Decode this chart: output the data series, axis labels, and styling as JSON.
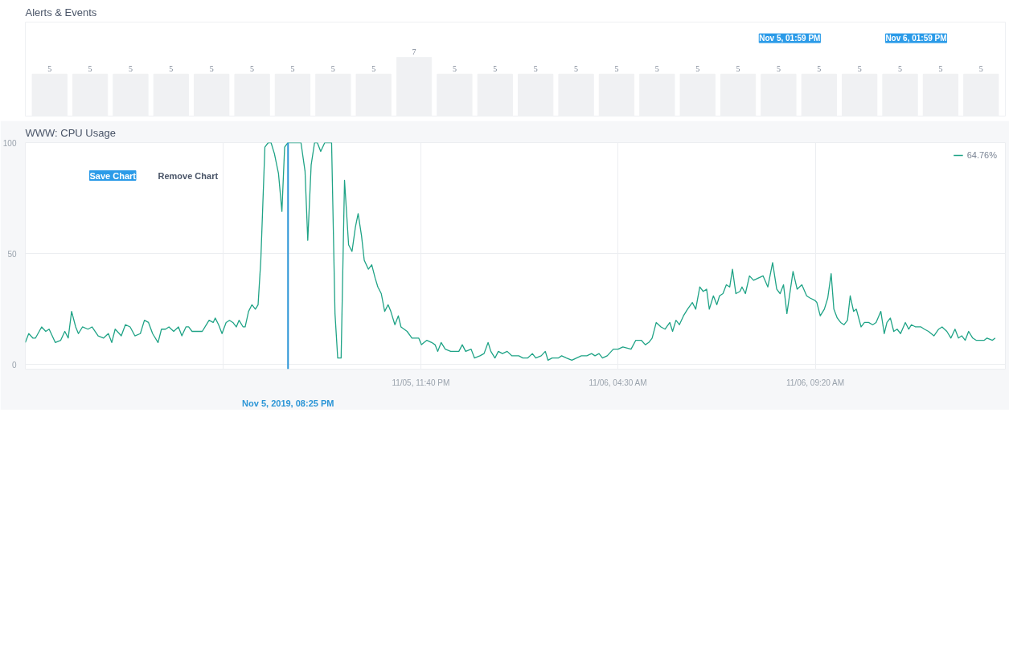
{
  "chart_data": [
    {
      "type": "bar",
      "title": "Alerts & Events",
      "categories": [
        null,
        null,
        null,
        null,
        null,
        null,
        null,
        null,
        null,
        null,
        null,
        null,
        null,
        null,
        null,
        null,
        null,
        null,
        null,
        null,
        null,
        null,
        null,
        null
      ],
      "values": [
        5,
        5,
        5,
        5,
        5,
        5,
        5,
        5,
        5,
        7,
        5,
        5,
        5,
        5,
        5,
        5,
        5,
        5,
        5,
        5,
        5,
        5,
        5,
        5
      ],
      "data_labels": true,
      "color": "#f0f1f3",
      "annotations": [
        "Nov 5, 01:59 PM",
        "Nov 6, 01:59 PM"
      ]
    },
    {
      "type": "line",
      "title": "WWW: CPU Usage",
      "x": [
        "2019-11-05T13:59",
        "2019-11-05T14:04",
        "2019-11-05T14:10",
        "2019-11-05T14:14",
        "2019-11-05T14:23",
        "2019-11-05T14:29",
        "2019-11-05T14:34",
        "2019-11-05T14:43",
        "2019-11-05T14:51",
        "2019-11-05T14:57",
        "2019-11-05T15:02",
        "2019-11-05T15:07",
        "2019-11-05T15:13",
        "2019-11-05T15:17",
        "2019-11-05T15:23",
        "2019-11-05T15:31",
        "2019-11-05T15:37",
        "2019-11-05T15:46",
        "2019-11-05T15:54",
        "2019-11-05T16:01",
        "2019-11-05T16:06",
        "2019-11-05T16:11",
        "2019-11-05T16:20",
        "2019-11-05T16:26",
        "2019-11-05T16:33",
        "2019-11-05T16:40",
        "2019-11-05T16:48",
        "2019-11-05T16:54",
        "2019-11-05T17:00",
        "2019-11-05T17:06",
        "2019-11-05T17:14",
        "2019-11-05T17:19",
        "2019-11-05T17:25",
        "2019-11-05T17:30",
        "2019-11-05T17:37",
        "2019-11-05T17:44",
        "2019-11-05T17:49",
        "2019-11-05T17:55",
        "2019-11-05T17:59",
        "2019-11-05T18:04",
        "2019-11-05T18:13",
        "2019-11-05T18:19",
        "2019-11-05T18:29",
        "2019-11-05T18:35",
        "2019-11-05T18:38",
        "2019-11-05T18:43",
        "2019-11-05T18:48",
        "2019-11-05T18:54",
        "2019-11-05T18:59",
        "2019-11-05T19:04",
        "2019-11-05T19:09",
        "2019-11-05T19:13",
        "2019-11-05T19:19",
        "2019-11-05T19:22",
        "2019-11-05T19:27",
        "2019-11-05T19:32",
        "2019-11-05T19:37",
        "2019-11-05T19:41",
        "2019-11-05T19:45",
        "2019-11-05T19:51",
        "2019-11-05T19:56",
        "2019-11-05T20:00",
        "2019-11-05T20:05",
        "2019-11-05T20:11",
        "2019-11-05T20:16",
        "2019-11-05T20:20",
        "2019-11-05T20:25",
        "2019-11-05T20:44",
        "2019-11-05T20:50",
        "2019-11-05T20:54",
        "2019-11-05T20:59",
        "2019-11-05T21:04",
        "2019-11-05T21:08",
        "2019-11-05T21:13",
        "2019-11-05T21:19",
        "2019-11-05T21:29",
        "2019-11-05T21:34",
        "2019-11-05T21:38",
        "2019-11-05T21:43",
        "2019-11-05T21:48",
        "2019-11-05T21:54",
        "2019-11-05T21:59",
        "2019-11-05T22:04",
        "2019-11-05T22:08",
        "2019-11-05T22:13",
        "2019-11-05T22:17",
        "2019-11-05T22:23",
        "2019-11-05T22:28",
        "2019-11-05T22:33",
        "2019-11-05T22:37",
        "2019-11-05T22:42",
        "2019-11-05T22:47",
        "2019-11-05T22:52",
        "2019-11-05T22:56",
        "2019-11-05T23:02",
        "2019-11-05T23:07",
        "2019-11-05T23:11",
        "2019-11-05T23:20",
        "2019-11-05T23:27",
        "2019-11-05T23:32",
        "2019-11-05T23:37",
        "2019-11-05T23:41",
        "2019-11-05T23:49",
        "2019-11-05T23:56",
        "2019-11-06T00:01",
        "2019-11-06T00:05",
        "2019-11-06T00:10",
        "2019-11-06T00:16",
        "2019-11-06T00:24",
        "2019-11-06T00:31",
        "2019-11-06T00:36",
        "2019-11-06T00:41",
        "2019-11-06T00:46",
        "2019-11-06T00:54",
        "2019-11-06T00:59",
        "2019-11-06T01:07",
        "2019-11-06T01:13",
        "2019-11-06T01:19",
        "2019-11-06T01:23",
        "2019-11-06T01:29",
        "2019-11-06T01:34",
        "2019-11-06T01:40",
        "2019-11-06T01:47",
        "2019-11-06T01:54",
        "2019-11-06T01:56",
        "2019-11-06T02:04",
        "2019-11-06T02:10",
        "2019-11-06T02:17",
        "2019-11-06T02:24",
        "2019-11-06T02:29",
        "2019-11-06T02:37",
        "2019-11-06T02:43",
        "2019-11-06T02:47",
        "2019-11-06T02:53",
        "2019-11-06T03:02",
        "2019-11-06T03:07",
        "2019-11-06T03:14",
        "2019-11-06T03:22",
        "2019-11-06T03:29",
        "2019-11-06T03:36",
        "2019-11-06T03:44",
        "2019-11-06T03:51",
        "2019-11-06T03:56",
        "2019-11-06T04:02",
        "2019-11-06T04:07",
        "2019-11-06T04:14",
        "2019-11-06T04:23",
        "2019-11-06T04:30",
        "2019-11-06T04:37",
        "2019-11-06T04:49",
        "2019-11-06T04:56",
        "2019-11-06T05:04",
        "2019-11-06T05:10",
        "2019-11-06T05:15",
        "2019-11-06T05:20",
        "2019-11-06T05:26",
        "2019-11-06T05:33",
        "2019-11-06T05:39",
        "2019-11-06T05:46",
        "2019-11-06T05:50",
        "2019-11-06T05:55",
        "2019-11-06T06:00",
        "2019-11-06T06:06",
        "2019-11-06T06:12",
        "2019-11-06T06:19",
        "2019-11-06T06:24",
        "2019-11-06T06:30",
        "2019-11-06T06:35",
        "2019-11-06T06:40",
        "2019-11-06T06:44",
        "2019-11-06T06:50",
        "2019-11-06T06:55",
        "2019-11-06T06:59",
        "2019-11-06T07:04",
        "2019-11-06T07:09",
        "2019-11-06T07:14",
        "2019-11-06T07:18",
        "2019-11-06T07:23",
        "2019-11-06T07:29",
        "2019-11-06T07:32",
        "2019-11-06T07:37",
        "2019-11-06T07:43",
        "2019-11-06T07:49",
        "2019-11-06T07:56",
        "2019-11-06T08:03",
        "2019-11-06T08:10",
        "2019-11-06T08:17",
        "2019-11-06T08:23",
        "2019-11-06T08:28",
        "2019-11-06T08:33",
        "2019-11-06T08:38",
        "2019-11-06T08:47",
        "2019-11-06T08:53",
        "2019-11-06T09:00",
        "2019-11-06T09:07",
        "2019-11-06T09:12",
        "2019-11-06T09:19",
        "2019-11-06T09:22",
        "2019-11-06T09:27",
        "2019-11-06T09:33",
        "2019-11-06T09:38",
        "2019-11-06T09:43",
        "2019-11-06T09:47",
        "2019-11-06T09:52",
        "2019-11-06T09:57",
        "2019-11-06T10:02",
        "2019-11-06T10:07",
        "2019-11-06T10:11",
        "2019-11-06T10:16",
        "2019-11-06T10:20",
        "2019-11-06T10:27",
        "2019-11-06T10:32",
        "2019-11-06T10:38",
        "2019-11-06T10:44",
        "2019-11-06T10:49",
        "2019-11-06T10:56",
        "2019-11-06T11:01",
        "2019-11-06T11:05",
        "2019-11-06T11:10",
        "2019-11-06T11:15",
        "2019-11-06T11:20",
        "2019-11-06T11:25",
        "2019-11-06T11:32",
        "2019-11-06T11:37",
        "2019-11-06T11:41",
        "2019-11-06T11:47",
        "2019-11-06T11:55",
        "2019-11-06T12:00",
        "2019-11-06T12:06",
        "2019-11-06T12:14",
        "2019-11-06T12:21",
        "2019-11-06T12:26",
        "2019-11-06T12:33",
        "2019-11-06T12:39",
        "2019-11-06T12:45",
        "2019-11-06T12:50",
        "2019-11-06T12:55",
        "2019-11-06T13:00",
        "2019-11-06T13:05",
        "2019-11-06T13:11",
        "2019-11-06T13:16",
        "2019-11-06T13:22",
        "2019-11-06T13:28",
        "2019-11-06T13:32",
        "2019-11-06T13:40",
        "2019-11-06T13:44"
      ],
      "series": [
        {
          "name": "64.76%",
          "color": "#1fa386",
          "values": [
            10,
            14,
            12,
            12,
            17,
            15,
            16,
            10,
            11,
            15,
            12,
            24,
            17,
            14,
            17,
            16,
            17,
            13,
            12,
            14,
            10,
            16,
            13,
            18,
            17,
            13,
            14,
            20,
            19,
            14,
            10,
            16,
            16,
            17,
            15,
            17,
            13,
            17,
            17,
            15,
            15,
            15,
            20,
            19,
            21,
            18,
            14,
            19,
            20,
            19,
            17,
            20,
            17,
            17,
            24,
            27,
            25,
            27,
            47,
            98,
            100,
            100,
            95,
            86,
            69,
            98,
            100,
            100,
            87,
            56,
            90,
            100,
            100,
            96,
            100,
            100,
            23,
            3,
            3,
            83,
            54,
            51,
            62,
            68,
            58,
            47,
            43,
            45,
            39,
            35,
            32,
            24,
            27,
            24,
            18,
            22,
            17,
            15,
            12,
            12,
            12,
            9,
            11,
            10,
            9,
            6,
            10,
            7,
            6,
            6,
            6,
            9,
            6,
            7,
            3,
            4,
            5,
            10,
            6,
            3,
            6,
            5,
            6,
            4,
            4,
            4,
            3,
            3,
            5,
            3,
            4,
            6,
            2,
            3,
            3,
            4,
            3,
            2,
            3,
            4,
            4,
            5,
            4,
            5,
            3,
            4,
            7,
            7,
            8,
            7,
            11,
            11,
            9,
            10,
            12,
            19,
            17,
            16,
            19,
            15,
            20,
            18,
            22,
            25,
            28,
            25,
            35,
            33,
            34,
            25,
            31,
            27,
            31,
            32,
            36,
            35,
            43,
            32,
            33,
            35,
            32,
            40,
            38,
            39,
            40,
            35,
            46,
            34,
            32,
            36,
            23,
            42,
            34,
            36,
            31,
            30,
            29,
            28,
            22,
            25,
            30,
            41,
            25,
            21,
            19,
            18,
            20,
            31,
            24,
            25,
            17,
            19,
            19,
            18,
            19,
            24,
            14,
            19,
            21,
            15,
            16,
            14,
            19,
            16,
            18,
            17,
            17,
            16,
            15,
            13,
            16,
            17,
            15,
            12,
            16,
            12,
            13,
            11,
            15,
            12,
            11,
            11,
            11,
            12,
            11,
            12
          ]
        }
      ],
      "xlim": [
        "2019-11-05T13:59",
        "2019-11-06T13:59"
      ],
      "xticks": [
        {
          "value": "2019-11-05T18:50",
          "label": null
        },
        {
          "value": "2019-11-05T23:40",
          "label": "11/05, 11:40 PM"
        },
        {
          "value": "2019-11-06T04:30",
          "label": "11/06, 04:30 AM"
        },
        {
          "value": "2019-11-06T09:20",
          "label": "11/06, 09:20 AM"
        }
      ],
      "ylim": [
        -2,
        100
      ],
      "yticks": [
        0,
        50,
        100
      ],
      "grid": true,
      "legend": "top right",
      "ref_lines": [
        {
          "axis": "x",
          "value": "2019-11-05T20:25",
          "label": "Nov 5, 2019, 08:25 PM",
          "color": "#2b95d6"
        }
      ],
      "annotations": [
        "Save Chart",
        "Remove Chart"
      ]
    }
  ]
}
